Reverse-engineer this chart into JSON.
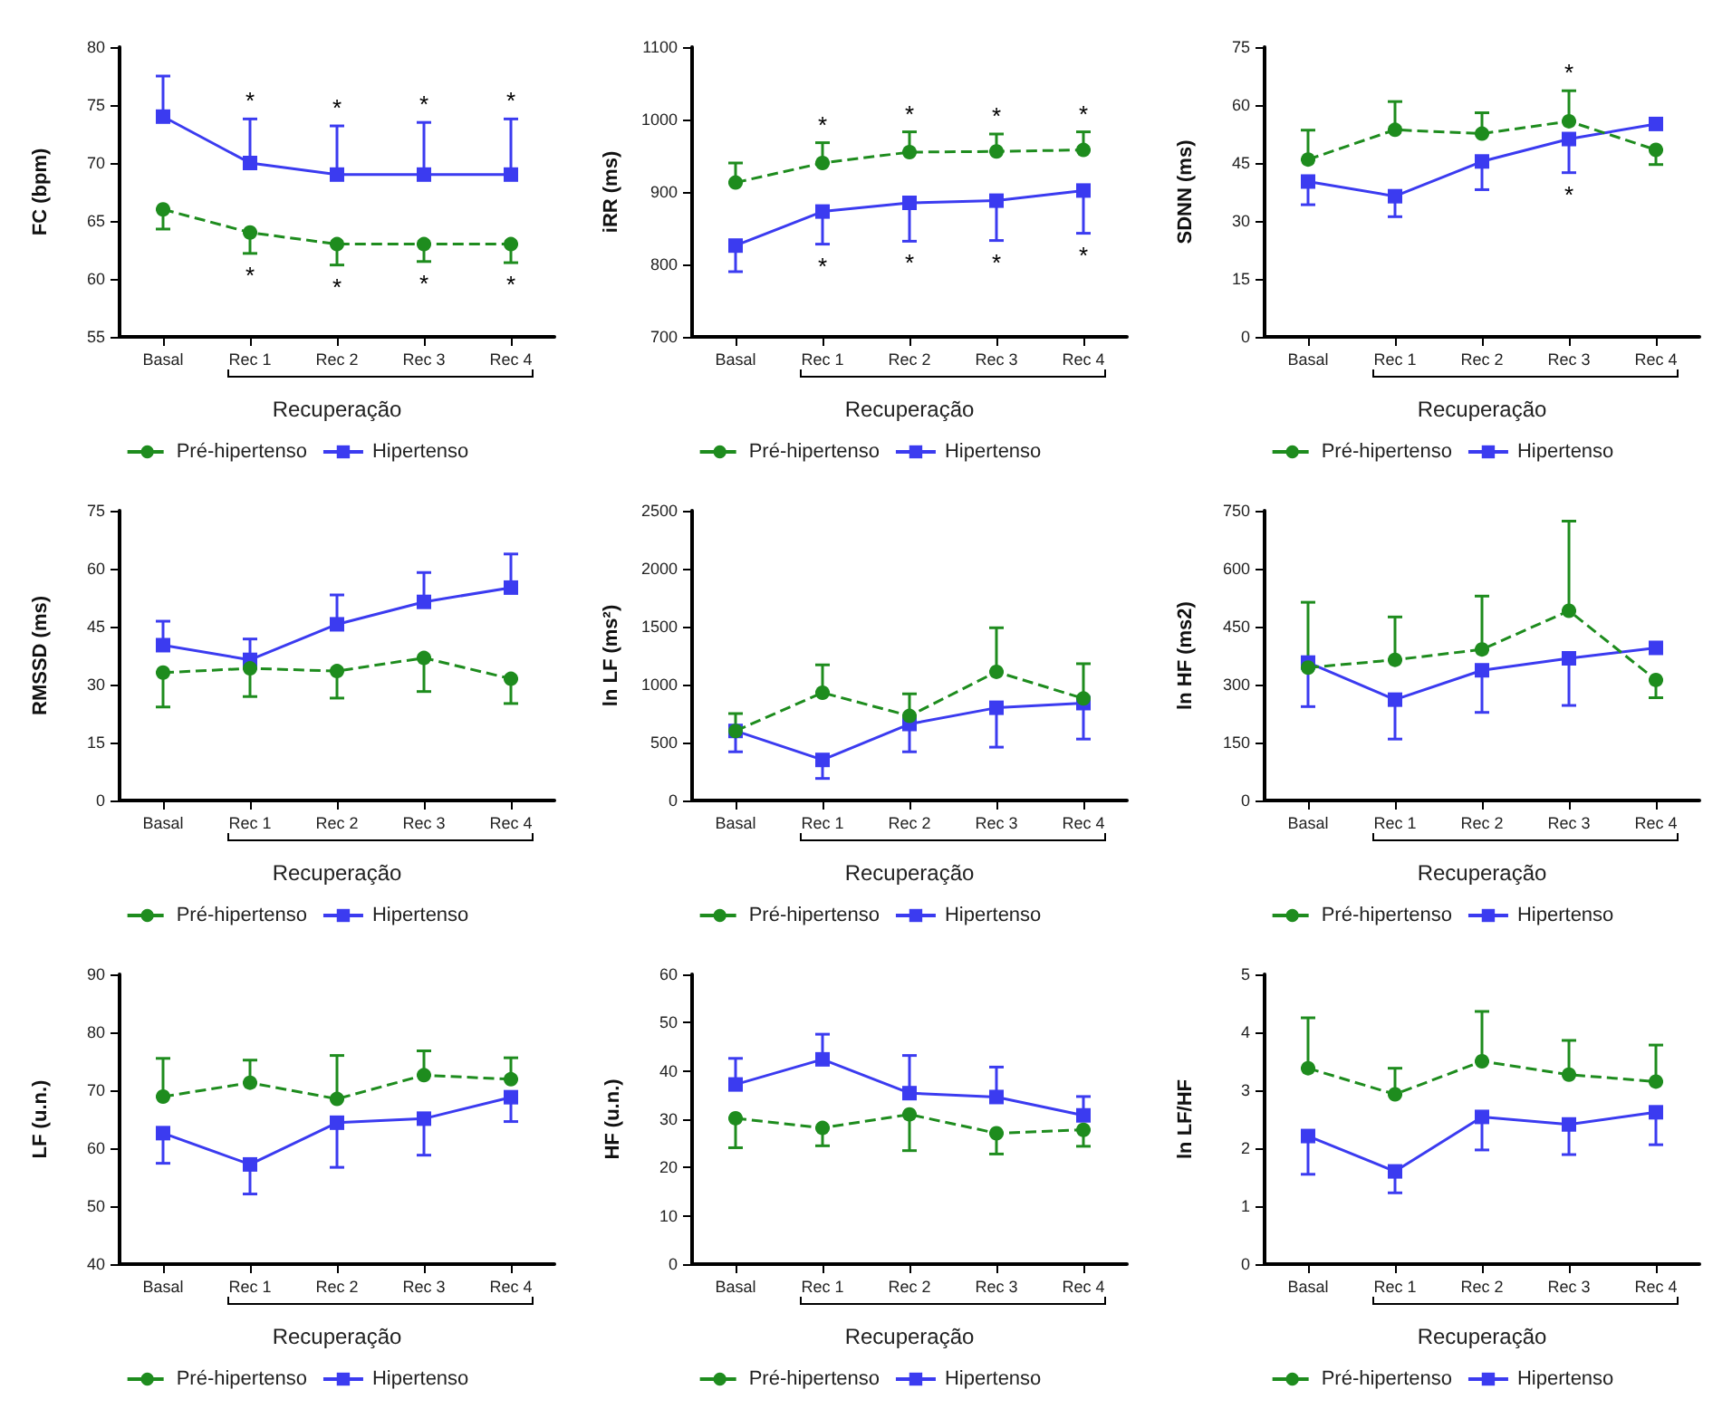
{
  "chart_data": [
    {
      "type": "line",
      "xlabel": "Recuperação",
      "ylabel": "FC (bpm)",
      "categories": [
        "Basal",
        "Rec 1",
        "Rec 2",
        "Rec 3",
        "Rec 4"
      ],
      "ylim": [
        55,
        80
      ],
      "yticks": [
        55,
        60,
        65,
        70,
        75,
        80
      ],
      "grid": false,
      "legend": "bottom",
      "annotations": [
        {
          "text": "*",
          "x": "Rec 1",
          "y": 73.8
        },
        {
          "text": "*",
          "x": "Rec 2",
          "y": 73.2
        },
        {
          "text": "*",
          "x": "Rec 3",
          "y": 73.5
        },
        {
          "text": "*",
          "x": "Rec 4",
          "y": 73.8
        },
        {
          "text": "*",
          "x": "Rec 1",
          "y": 62.2
        },
        {
          "text": "*",
          "x": "Rec 2",
          "y": 61.2
        },
        {
          "text": "*",
          "x": "Rec 3",
          "y": 61.5
        },
        {
          "text": "*",
          "x": "Rec 4",
          "y": 61.4
        }
      ],
      "series": [
        {
          "name": "Pré-hipertenso",
          "color": "#1e8c1e",
          "marker": "circle",
          "line_style": "dashed",
          "values": [
            66,
            64,
            63,
            63,
            63
          ],
          "errors": [
            [
              64.3,
              66
            ],
            [
              62.2,
              64
            ],
            [
              61.2,
              63
            ],
            [
              61.5,
              63
            ],
            [
              61.4,
              63
            ]
          ]
        },
        {
          "name": "Hipertenso",
          "color": "#3b3bf0",
          "marker": "square",
          "line_style": "solid",
          "values": [
            74,
            70,
            69,
            69,
            69
          ],
          "errors": [
            [
              74,
              77.5
            ],
            [
              70,
              73.8
            ],
            [
              69,
              73.2
            ],
            [
              69,
              73.5
            ],
            [
              69,
              73.8
            ]
          ]
        }
      ]
    },
    {
      "type": "line",
      "xlabel": "Recuperação",
      "ylabel": "iRR (ms)",
      "categories": [
        "Basal",
        "Rec 1",
        "Rec 2",
        "Rec 3",
        "Rec 4"
      ],
      "ylim": [
        700,
        1100
      ],
      "yticks": [
        700,
        800,
        900,
        1000,
        1100
      ],
      "grid": false,
      "legend": "bottom",
      "annotations": [
        {
          "text": "*",
          "x": "Rec 1",
          "y": 968
        },
        {
          "text": "*",
          "x": "Rec 2",
          "y": 983
        },
        {
          "text": "*",
          "x": "Rec 3",
          "y": 980
        },
        {
          "text": "*",
          "x": "Rec 4",
          "y": 983
        },
        {
          "text": "*",
          "x": "Rec 1",
          "y": 828
        },
        {
          "text": "*",
          "x": "Rec 2",
          "y": 832
        },
        {
          "text": "*",
          "x": "Rec 3",
          "y": 833
        },
        {
          "text": "*",
          "x": "Rec 4",
          "y": 843
        }
      ],
      "series": [
        {
          "name": "Pré-hipertenso",
          "color": "#1e8c1e",
          "marker": "circle",
          "line_style": "dashed",
          "values": [
            913,
            940,
            955,
            956,
            958
          ],
          "errors": [
            [
              913,
              940
            ],
            [
              940,
              968
            ],
            [
              955,
              983
            ],
            [
              956,
              980
            ],
            [
              958,
              983
            ]
          ]
        },
        {
          "name": "Hipertenso",
          "color": "#3b3bf0",
          "marker": "square",
          "line_style": "solid",
          "values": [
            826,
            873,
            885,
            888,
            902
          ],
          "errors": [
            [
              790,
              826
            ],
            [
              828,
              873
            ],
            [
              832,
              885
            ],
            [
              833,
              888
            ],
            [
              843,
              902
            ]
          ]
        }
      ]
    },
    {
      "type": "line",
      "xlabel": "Recuperação",
      "ylabel": "SDNN (ms)",
      "categories": [
        "Basal",
        "Rec 1",
        "Rec 2",
        "Rec 3",
        "Rec 4"
      ],
      "ylim": [
        0,
        75
      ],
      "yticks": [
        0,
        15,
        30,
        45,
        60,
        75
      ],
      "grid": false,
      "legend": "bottom",
      "annotations": [
        {
          "text": "*",
          "x": "Rec 3",
          "y": 63.7
        },
        {
          "text": "*",
          "x": "Rec 3",
          "y": 42.5
        }
      ],
      "series": [
        {
          "name": "Pré-hipertenso",
          "color": "#1e8c1e",
          "marker": "circle",
          "line_style": "dashed",
          "values": [
            45.9,
            53.6,
            52.6,
            55.8,
            48.4
          ],
          "errors": [
            [
              45.9,
              53.5
            ],
            [
              53.6,
              60.9
            ],
            [
              52.6,
              58
            ],
            [
              55.8,
              63.7
            ],
            [
              44.6,
              48.4
            ]
          ]
        },
        {
          "name": "Hipertenso",
          "color": "#3b3bf0",
          "marker": "square",
          "line_style": "solid",
          "values": [
            40.2,
            36.4,
            45.4,
            51.2,
            55.1
          ],
          "errors": [
            [
              34.2,
              40.2
            ],
            [
              31.1,
              36.4
            ],
            [
              38.1,
              45.4
            ],
            [
              42.5,
              51.2
            ],
            null
          ]
        }
      ]
    },
    {
      "type": "line",
      "xlabel": "Recuperação",
      "ylabel": "RMSSD (ms)",
      "categories": [
        "Basal",
        "Rec 1",
        "Rec 2",
        "Rec 3",
        "Rec 4"
      ],
      "ylim": [
        0,
        75
      ],
      "yticks": [
        0,
        15,
        30,
        45,
        60,
        75
      ],
      "grid": false,
      "legend": "bottom",
      "series": [
        {
          "name": "Pré-hipertenso",
          "color": "#1e8c1e",
          "marker": "circle",
          "line_style": "dashed",
          "values": [
            33.1,
            34.2,
            33.5,
            36.9,
            31.5
          ],
          "errors": [
            [
              24.2,
              33.1
            ],
            [
              26.9,
              34.2
            ],
            [
              26.5,
              33.5
            ],
            [
              28.2,
              36.9
            ],
            [
              25.1,
              31.5
            ]
          ]
        },
        {
          "name": "Hipertenso",
          "color": "#3b3bf0",
          "marker": "square",
          "line_style": "solid",
          "values": [
            40.2,
            36.4,
            45.6,
            51.4,
            55.1
          ],
          "errors": [
            [
              40.2,
              46.4
            ],
            [
              36.4,
              41.8
            ],
            [
              45.6,
              53.2
            ],
            [
              51.4,
              59
            ],
            [
              55.1,
              63.8
            ]
          ]
        }
      ]
    },
    {
      "type": "line",
      "xlabel": "Recuperação",
      "ylabel": "ln LF (ms²)",
      "categories": [
        "Basal",
        "Rec 1",
        "Rec 2",
        "Rec 3",
        "Rec 4"
      ],
      "ylim": [
        0,
        2500
      ],
      "yticks": [
        0,
        500,
        1000,
        1500,
        2000,
        2500
      ],
      "grid": false,
      "legend": "bottom",
      "series": [
        {
          "name": "Pré-hipertenso",
          "color": "#1e8c1e",
          "marker": "circle",
          "line_style": "dashed",
          "values": [
            600,
            930,
            730,
            1110,
            880
          ],
          "errors": [
            [
              600,
              750
            ],
            [
              930,
              1170
            ],
            [
              730,
              920
            ],
            [
              1110,
              1490
            ],
            [
              880,
              1180
            ]
          ]
        },
        {
          "name": "Hipertenso",
          "color": "#3b3bf0",
          "marker": "square",
          "line_style": "solid",
          "values": [
            600,
            350,
            660,
            800,
            840
          ],
          "errors": [
            [
              420,
              600
            ],
            [
              190,
              350
            ],
            [
              420,
              660
            ],
            [
              460,
              800
            ],
            [
              530,
              840
            ]
          ]
        }
      ]
    },
    {
      "type": "line",
      "xlabel": "Recuperação",
      "ylabel": "ln HF (ms2)",
      "categories": [
        "Basal",
        "Rec 1",
        "Rec 2",
        "Rec 3",
        "Rec 4"
      ],
      "ylim": [
        0,
        750
      ],
      "yticks": [
        0,
        150,
        300,
        450,
        600,
        750
      ],
      "grid": false,
      "legend": "bottom",
      "series": [
        {
          "name": "Pré-hipertenso",
          "color": "#1e8c1e",
          "marker": "circle",
          "line_style": "dashed",
          "values": [
            344,
            364,
            391,
            491,
            312
          ],
          "errors": [
            [
              344,
              513
            ],
            [
              364,
              475
            ],
            [
              391,
              529
            ],
            [
              491,
              723
            ],
            [
              266,
              312
            ]
          ]
        },
        {
          "name": "Hipertenso",
          "color": "#3b3bf0",
          "marker": "square",
          "line_style": "solid",
          "values": [
            357,
            261,
            337,
            368,
            395
          ],
          "errors": [
            [
              243,
              357
            ],
            [
              159,
              261
            ],
            [
              228,
              337
            ],
            [
              246,
              368
            ],
            null
          ]
        }
      ]
    },
    {
      "type": "line",
      "xlabel": "Recuperação",
      "ylabel": "LF (u.n.)",
      "categories": [
        "Basal",
        "Rec 1",
        "Rec 2",
        "Rec 3",
        "Rec 4"
      ],
      "ylim": [
        40,
        90
      ],
      "yticks": [
        40,
        50,
        60,
        70,
        80,
        90
      ],
      "grid": false,
      "legend": "bottom",
      "series": [
        {
          "name": "Pré-hipertenso",
          "color": "#1e8c1e",
          "marker": "circle",
          "line_style": "dashed",
          "values": [
            68.9,
            71.3,
            68.5,
            72.6,
            71.9
          ],
          "errors": [
            [
              68.9,
              75.5
            ],
            [
              71.3,
              75.2
            ],
            [
              68.5,
              76
            ],
            [
              72.6,
              76.8
            ],
            [
              71.9,
              75.6
            ]
          ]
        },
        {
          "name": "Hipertenso",
          "color": "#3b3bf0",
          "marker": "square",
          "line_style": "solid",
          "values": [
            62.6,
            57.2,
            64.4,
            65.1,
            68.8
          ],
          "errors": [
            [
              57.4,
              62.6
            ],
            [
              52.1,
              57.2
            ],
            [
              56.7,
              64.4
            ],
            [
              58.8,
              65.1
            ],
            [
              64.6,
              68.8
            ]
          ]
        }
      ]
    },
    {
      "type": "line",
      "xlabel": "Recuperação",
      "ylabel": "HF (u.n.)",
      "categories": [
        "Basal",
        "Rec 1",
        "Rec 2",
        "Rec 3",
        "Rec 4"
      ],
      "ylim": [
        0,
        60
      ],
      "yticks": [
        0,
        10,
        20,
        30,
        40,
        50,
        60
      ],
      "grid": false,
      "legend": "bottom",
      "series": [
        {
          "name": "Pré-hipertenso",
          "color": "#1e8c1e",
          "marker": "circle",
          "line_style": "dashed",
          "values": [
            30.2,
            28.2,
            31,
            27.1,
            27.8
          ],
          "errors": [
            [
              24.1,
              30.2
            ],
            [
              24.5,
              28.2
            ],
            [
              23.5,
              31
            ],
            [
              22.8,
              27.1
            ],
            [
              24.4,
              27.8
            ]
          ]
        },
        {
          "name": "Hipertenso",
          "color": "#3b3bf0",
          "marker": "square",
          "line_style": "solid",
          "values": [
            37.2,
            42.4,
            35.4,
            34.6,
            30.8
          ],
          "errors": [
            [
              37.2,
              42.6
            ],
            [
              42.4,
              47.6
            ],
            [
              35.4,
              43.2
            ],
            [
              34.6,
              40.8
            ],
            [
              30.8,
              34.7
            ]
          ]
        }
      ]
    },
    {
      "type": "line",
      "xlabel": "Recuperação",
      "ylabel": "ln LF/HF",
      "categories": [
        "Basal",
        "Rec 1",
        "Rec 2",
        "Rec 3",
        "Rec 4"
      ],
      "ylim": [
        0,
        5
      ],
      "yticks": [
        0,
        1,
        2,
        3,
        4,
        5
      ],
      "grid": false,
      "legend": "bottom",
      "series": [
        {
          "name": "Pré-hipertenso",
          "color": "#1e8c1e",
          "marker": "circle",
          "line_style": "dashed",
          "values": [
            3.38,
            2.93,
            3.5,
            3.27,
            3.15
          ],
          "errors": [
            [
              3.38,
              4.25
            ],
            [
              2.93,
              3.38
            ],
            [
              3.5,
              4.36
            ],
            [
              3.27,
              3.86
            ],
            [
              3.15,
              3.78
            ]
          ]
        },
        {
          "name": "Hipertenso",
          "color": "#3b3bf0",
          "marker": "square",
          "line_style": "solid",
          "values": [
            2.21,
            1.6,
            2.54,
            2.41,
            2.62
          ],
          "errors": [
            [
              1.55,
              2.21
            ],
            [
              1.23,
              1.6
            ],
            [
              1.97,
              2.54
            ],
            [
              1.89,
              2.41
            ],
            [
              2.06,
              2.62
            ]
          ]
        }
      ]
    }
  ]
}
